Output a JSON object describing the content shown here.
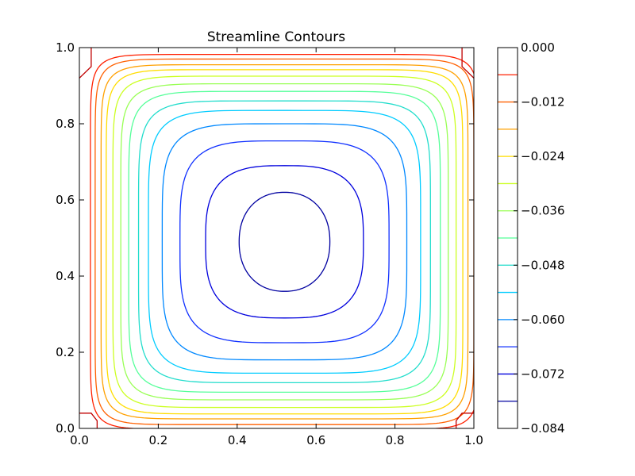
{
  "chart_data": {
    "type": "contour",
    "title": "Streamline Contours",
    "xlim": [
      0.0,
      1.0
    ],
    "ylim": [
      0.0,
      1.0
    ],
    "x_ticks": [
      "0.0",
      "0.2",
      "0.4",
      "0.6",
      "0.8",
      "1.0"
    ],
    "y_ticks": [
      "0.0",
      "0.2",
      "0.4",
      "0.6",
      "0.8",
      "1.0"
    ],
    "center": [
      0.52,
      0.49
    ],
    "levels": [
      -0.078,
      -0.072,
      -0.066,
      -0.06,
      -0.054,
      -0.048,
      -0.042,
      -0.036,
      -0.03,
      -0.024,
      -0.018,
      -0.012,
      -0.006,
      0.0
    ],
    "colors": [
      "#0000a0",
      "#0000dd",
      "#1030ff",
      "#0088ff",
      "#00ccff",
      "#22ddcc",
      "#55ff99",
      "#99ff55",
      "#ccff22",
      "#ffdd00",
      "#ffa000",
      "#ff6000",
      "#ff2000",
      "#c00000"
    ],
    "contours": [
      {
        "level": -0.078,
        "half_width": 0.115,
        "half_height": 0.13
      },
      {
        "level": -0.072,
        "half_width": 0.2,
        "half_height": 0.2
      },
      {
        "level": -0.066,
        "half_width": 0.265,
        "half_height": 0.265
      },
      {
        "level": -0.06,
        "half_width": 0.31,
        "half_height": 0.31
      },
      {
        "level": -0.054,
        "half_width": 0.345,
        "half_height": 0.345
      },
      {
        "level": -0.048,
        "half_width": 0.37,
        "half_height": 0.37
      },
      {
        "level": -0.042,
        "half_width": 0.395,
        "half_height": 0.395
      },
      {
        "level": -0.036,
        "half_width": 0.415,
        "half_height": 0.415
      },
      {
        "level": -0.03,
        "half_width": 0.435,
        "half_height": 0.435
      },
      {
        "level": -0.024,
        "half_width": 0.452,
        "half_height": 0.452
      },
      {
        "level": -0.018,
        "half_width": 0.465,
        "half_height": 0.465
      },
      {
        "level": -0.012,
        "half_width": 0.48,
        "half_height": 0.48
      },
      {
        "level": -0.006,
        "half_width": 0.492,
        "half_height": 0.492
      }
    ],
    "colorbar": {
      "range": [
        -0.084,
        0.0
      ],
      "tick_labels": [
        "0.000",
        "−0.012",
        "−0.024",
        "−0.036",
        "−0.048",
        "−0.060",
        "−0.072",
        "−0.084"
      ],
      "tick_values": [
        0.0,
        -0.012,
        -0.024,
        -0.036,
        -0.048,
        -0.06,
        -0.072,
        -0.084
      ]
    }
  }
}
